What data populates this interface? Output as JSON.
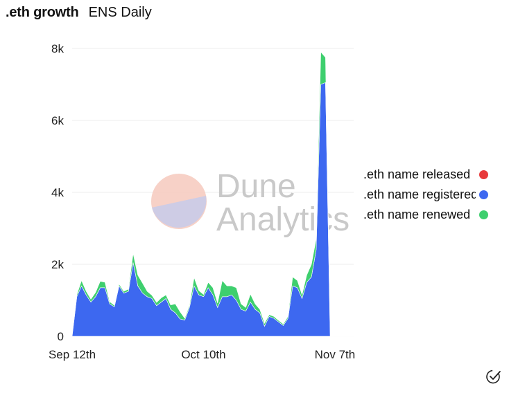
{
  "header": {
    "title": ".eth growth",
    "subtitle": "ENS Daily"
  },
  "legend": [
    {
      "label": ".eth name released",
      "color": "#e8393a"
    },
    {
      "label": ".eth name registered",
      "color": "#3d68f0"
    },
    {
      "label": ".eth name renewed",
      "color": "#3ecf6e"
    }
  ],
  "watermark": {
    "line1": "Dune",
    "line2": "Analytics"
  },
  "icons": {
    "status": "check-circle-icon"
  },
  "chart_data": {
    "type": "area",
    "stacked": true,
    "x_tick_labels": [
      "Sep 12th",
      "Oct 10th",
      "Nov 7th"
    ],
    "y_tick_labels": [
      "0",
      "2k",
      "4k",
      "6k",
      "8k"
    ],
    "ylim": [
      0,
      8000
    ],
    "grid": true,
    "legend_position": "right",
    "days": 61,
    "series": [
      {
        "name": ".eth name released",
        "color": "#e8393a",
        "values": [
          0,
          0,
          0,
          0,
          0,
          0,
          0,
          0,
          0,
          0,
          0,
          0,
          0,
          0,
          0,
          0,
          0,
          0,
          0,
          0,
          0,
          0,
          0,
          0,
          0,
          0,
          0,
          0,
          0,
          0,
          0,
          0,
          0,
          0,
          0,
          0,
          0,
          0,
          0,
          0,
          0,
          0,
          0,
          0,
          0,
          0,
          0,
          0,
          0,
          0,
          0,
          0,
          0,
          0,
          0,
          0,
          0,
          0,
          0,
          0,
          0
        ]
      },
      {
        "name": ".eth name registered",
        "color": "#3d68f0",
        "values": [
          0,
          1100,
          1400,
          1150,
          950,
          1100,
          1350,
          1350,
          900,
          820,
          1400,
          1200,
          1250,
          2050,
          1400,
          1200,
          1100,
          1050,
          850,
          950,
          1050,
          750,
          650,
          480,
          450,
          800,
          1400,
          1150,
          1100,
          1350,
          1150,
          800,
          1100,
          1100,
          1150,
          1000,
          750,
          700,
          950,
          750,
          650,
          280,
          550,
          500,
          400,
          300,
          500,
          1400,
          1350,
          1050,
          1500,
          1650,
          2400,
          7000,
          7050,
          0,
          0,
          0,
          0,
          0,
          0
        ]
      },
      {
        "name": ".eth name renewed",
        "color": "#3ecf6e",
        "values": [
          0,
          50,
          150,
          100,
          80,
          120,
          180,
          150,
          60,
          40,
          50,
          50,
          60,
          250,
          300,
          280,
          150,
          90,
          90,
          120,
          100,
          120,
          250,
          200,
          50,
          60,
          230,
          120,
          60,
          150,
          200,
          120,
          450,
          300,
          250,
          350,
          150,
          100,
          220,
          150,
          100,
          80,
          50,
          50,
          40,
          40,
          50,
          250,
          200,
          100,
          200,
          350,
          300,
          900,
          700,
          0,
          0,
          0,
          0,
          0,
          0
        ]
      }
    ]
  }
}
